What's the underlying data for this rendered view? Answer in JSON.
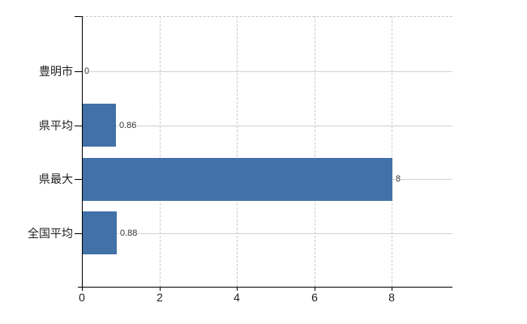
{
  "chart_data": {
    "type": "bar",
    "orientation": "horizontal",
    "title": "",
    "xlabel": "",
    "ylabel": "",
    "categories": [
      "豊明市",
      "県平均",
      "県最大",
      "全国平均"
    ],
    "values": [
      0,
      0.86,
      8,
      0.88
    ],
    "value_labels": [
      "0",
      "0.86",
      "8",
      "0.88"
    ],
    "x_ticks": [
      0,
      2,
      4,
      6,
      8
    ],
    "x_tick_labels": [
      "0",
      "2",
      "4",
      "6",
      "8"
    ],
    "xlim": [
      0,
      9.57
    ],
    "grid": true,
    "legend": "none",
    "colors": {
      "bar": "#4171a7",
      "h_gridline": "#ccd6cc",
      "v_gridline": "#cccccc",
      "axis": "#000000",
      "category_text": "#222222",
      "tick_text": "#222222",
      "value_text": "#333333",
      "plot_border": "#c9c9c9",
      "background": "#ffffff"
    }
  }
}
